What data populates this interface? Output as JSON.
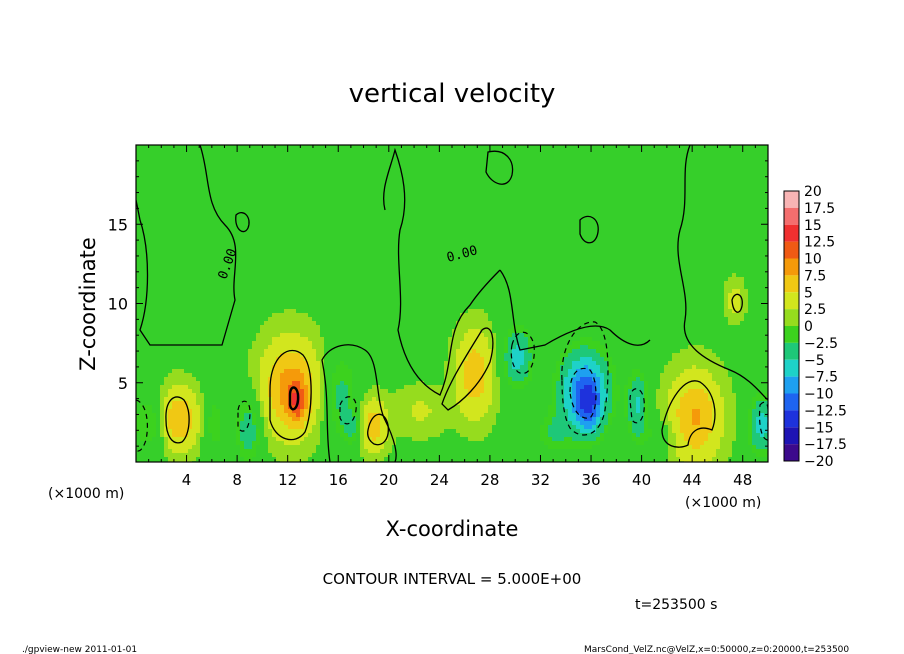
{
  "chart_data": {
    "type": "heatmap",
    "title": "vertical velocity",
    "xlabel": "X-coordinate",
    "ylabel": "Z-coordinate",
    "x_unit_left": "(×1000 m)",
    "x_unit_right": "(×1000 m)",
    "xlim": [
      0,
      50
    ],
    "ylim": [
      0,
      20
    ],
    "x_ticks": [
      4,
      8,
      12,
      16,
      20,
      24,
      28,
      32,
      36,
      40,
      44,
      48
    ],
    "y_ticks": [
      5,
      10,
      15
    ],
    "contour_interval_text": "CONTOUR INTERVAL = 5.000E+00",
    "contour_label": "0.00",
    "time_text": "t=253500 s",
    "colorbar": {
      "levels": [
        "20",
        "17.5",
        "15",
        "12.5",
        "10",
        "7.5",
        "5",
        "2.5",
        "0",
        "−2.5",
        "−5",
        "−7.5",
        "−10",
        "−12.5",
        "−15",
        "−17.5",
        "−20"
      ],
      "colors": [
        "#f8b4b4",
        "#f46e6e",
        "#f03030",
        "#f05a14",
        "#f59a0a",
        "#f0c814",
        "#d2e61e",
        "#96dc1e",
        "#3cd21e",
        "#1ec878",
        "#1ed2c8",
        "#1ea0f0",
        "#1e64f0",
        "#1e32dc",
        "#1e14b4",
        "#3c0a8c"
      ]
    },
    "anomalies": [
      {
        "x": 1.2,
        "z": 2.5,
        "sx": 1.0,
        "sz": 1.3,
        "w": -4
      },
      {
        "x": 3.3,
        "z": 2.7,
        "sx": 1.1,
        "sz": 1.3,
        "w": 7
      },
      {
        "x": 6.2,
        "z": 2.4,
        "sx": 0.6,
        "sz": 1.4,
        "w": -3
      },
      {
        "x": 8.9,
        "z": 2.0,
        "sx": 0.7,
        "sz": 1.5,
        "w": -5
      },
      {
        "x": 12.2,
        "z": 4.7,
        "sx": 1.5,
        "sz": 2.0,
        "w": 8
      },
      {
        "x": 12.8,
        "z": 3.7,
        "sx": 0.5,
        "sz": 0.9,
        "w": 6
      },
      {
        "x": 16.2,
        "z": 4.2,
        "sx": 0.9,
        "sz": 1.9,
        "w": -4
      },
      {
        "x": 18.7,
        "z": 2.3,
        "sx": 0.8,
        "sz": 1.1,
        "w": 6
      },
      {
        "x": 17.3,
        "z": 2.2,
        "sx": 0.6,
        "sz": 0.8,
        "w": -4
      },
      {
        "x": 26.8,
        "z": 5.5,
        "sx": 1.0,
        "sz": 1.8,
        "w": 6
      },
      {
        "x": 30.2,
        "z": 6.6,
        "sx": 0.8,
        "sz": 1.3,
        "w": -7
      },
      {
        "x": 35.5,
        "z": 4.5,
        "sx": 1.4,
        "sz": 1.8,
        "w": -11
      },
      {
        "x": 35.8,
        "z": 3.4,
        "sx": 0.7,
        "sz": 1.2,
        "w": -6
      },
      {
        "x": 39.7,
        "z": 3.6,
        "sx": 0.6,
        "sz": 1.5,
        "w": -6
      },
      {
        "x": 44.2,
        "z": 2.8,
        "sx": 1.4,
        "sz": 1.9,
        "w": 7
      },
      {
        "x": 47.4,
        "z": 10.2,
        "sx": 0.5,
        "sz": 0.8,
        "w": 3
      },
      {
        "x": 49.5,
        "z": 2.3,
        "sx": 0.7,
        "sz": 1.3,
        "w": -7
      },
      {
        "x": 22.5,
        "z": 3.2,
        "sx": 1.4,
        "sz": 1.0,
        "w": 2
      },
      {
        "x": 41.5,
        "z": 1.6,
        "sx": 1.2,
        "sz": 0.8,
        "w": -2
      },
      {
        "x": 33.0,
        "z": 1.8,
        "sx": 1.0,
        "sz": 1.0,
        "w": -3
      }
    ]
  },
  "footer": {
    "left": "./gpview-new   2011-01-01",
    "right": "MarsCond_VelZ.nc@VelZ,x=0:50000,z=0:20000,t=253500"
  }
}
